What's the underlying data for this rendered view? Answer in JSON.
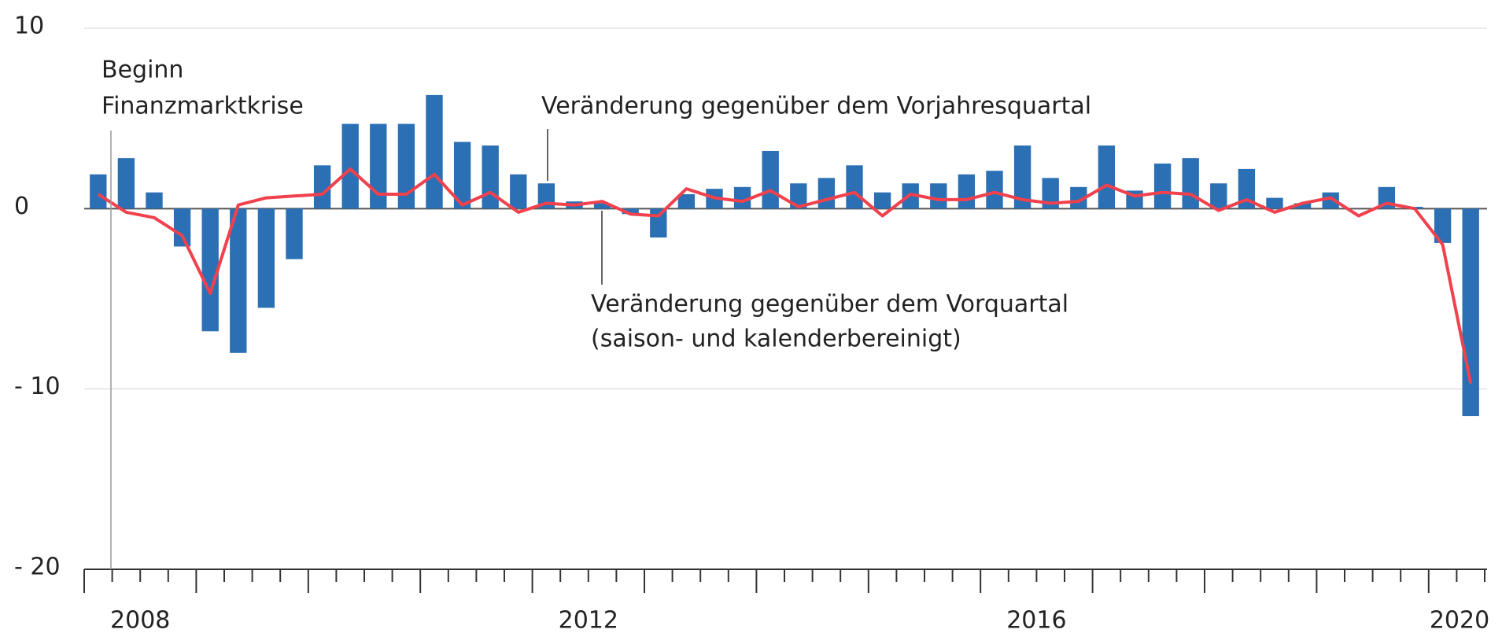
{
  "chart_data": {
    "type": "bar",
    "categories": [
      "2008",
      null,
      null,
      null,
      null,
      null,
      null,
      null,
      null,
      null,
      null,
      null,
      null,
      null,
      null,
      null,
      "2012",
      null,
      null,
      null,
      null,
      null,
      null,
      null,
      null,
      null,
      null,
      null,
      null,
      null,
      null,
      null,
      "2016",
      null,
      null,
      null,
      null,
      null,
      null,
      null,
      null,
      null,
      null,
      null,
      null,
      null,
      null,
      null,
      "2020",
      null
    ],
    "series": [
      {
        "name": "Veränderung gegenüber dem Vorjahresquartal",
        "type": "bar",
        "color": "#2b6fb5",
        "values": [
          1.9,
          2.8,
          0.9,
          -2.1,
          -6.8,
          -8.0,
          -5.5,
          -2.8,
          2.4,
          4.7,
          4.7,
          4.7,
          6.3,
          3.7,
          3.5,
          1.9,
          1.4,
          0.4,
          0.3,
          -0.3,
          -1.6,
          0.8,
          1.1,
          1.2,
          3.2,
          1.4,
          1.7,
          2.4,
          0.9,
          1.4,
          1.4,
          1.9,
          2.1,
          3.5,
          1.7,
          1.2,
          3.5,
          1.0,
          2.5,
          2.8,
          1.4,
          2.2,
          0.6,
          0.3,
          0.9,
          0.0,
          1.2,
          0.1,
          -1.9,
          -11.5
        ]
      },
      {
        "name": "Veränderung gegenüber dem Vorquartal",
        "type": "line",
        "color": "#f0414d",
        "values": [
          0.8,
          -0.2,
          -0.5,
          -1.5,
          -4.7,
          0.2,
          0.6,
          0.7,
          0.8,
          2.2,
          0.8,
          0.8,
          1.9,
          0.2,
          0.9,
          -0.2,
          0.3,
          0.2,
          0.4,
          -0.3,
          -0.4,
          1.1,
          0.6,
          0.4,
          1.0,
          0.1,
          0.5,
          0.9,
          -0.4,
          0.8,
          0.5,
          0.5,
          0.9,
          0.5,
          0.3,
          0.4,
          1.3,
          0.7,
          0.9,
          0.8,
          -0.1,
          0.5,
          -0.2,
          0.3,
          0.6,
          -0.4,
          0.3,
          0.0,
          -2.0,
          -9.7
        ]
      }
    ],
    "annotations": [
      "Beginn",
      "Finanzmarktkrise",
      "(saison- und kalenderbereinigt)"
    ],
    "ylim": [
      -20,
      10
    ],
    "yticks": [
      10,
      0,
      {
        "value": -10,
        "label": "- 10"
      },
      {
        "value": -20,
        "label": "- 20"
      }
    ],
    "grid": true
  }
}
